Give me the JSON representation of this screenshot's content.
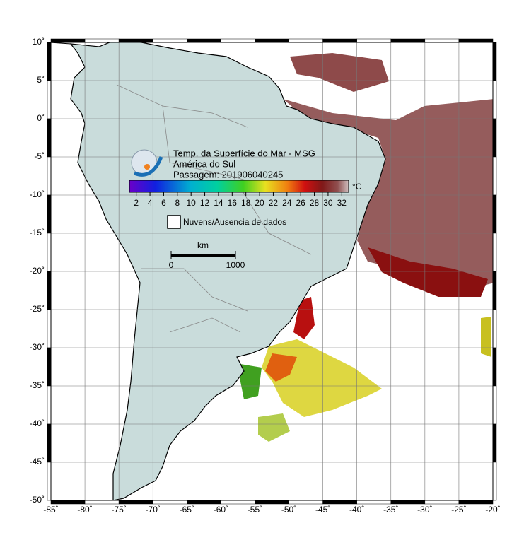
{
  "map": {
    "xlim": [
      -85,
      -20
    ],
    "ylim": [
      -50,
      10
    ],
    "xticks": [
      {
        "value": -85,
        "label": "-85˚"
      },
      {
        "value": -80,
        "label": "-80˚"
      },
      {
        "value": -75,
        "label": "-75˚"
      },
      {
        "value": -70,
        "label": "-70˚"
      },
      {
        "value": -65,
        "label": "-65˚"
      },
      {
        "value": -60,
        "label": "-60˚"
      },
      {
        "value": -55,
        "label": "-55˚"
      },
      {
        "value": -50,
        "label": "-50˚"
      },
      {
        "value": -45,
        "label": "-45˚"
      },
      {
        "value": -40,
        "label": "-40˚"
      },
      {
        "value": -35,
        "label": "-35˚"
      },
      {
        "value": -30,
        "label": "-30˚"
      },
      {
        "value": -25,
        "label": "-25˚"
      },
      {
        "value": -20,
        "label": "-20˚"
      }
    ],
    "yticks": [
      {
        "value": 10,
        "label": "10˚"
      },
      {
        "value": 5,
        "label": "5˚"
      },
      {
        "value": 0,
        "label": "0˚"
      },
      {
        "value": -5,
        "label": "-5˚"
      },
      {
        "value": -10,
        "label": "-10˚"
      },
      {
        "value": -15,
        "label": "-15˚"
      },
      {
        "value": -20,
        "label": "-20˚"
      },
      {
        "value": -25,
        "label": "-25˚"
      },
      {
        "value": -30,
        "label": "-30˚"
      },
      {
        "value": -35,
        "label": "-35˚"
      },
      {
        "value": -40,
        "label": "-40˚"
      },
      {
        "value": -45,
        "label": "-45˚"
      },
      {
        "value": -50,
        "label": "-50˚"
      }
    ],
    "grid": true
  },
  "legend": {
    "title": [
      "Temp. da Superfície do Mar - MSG",
      "América do Sul",
      "Passagem: 201906040245"
    ],
    "unit": "°C",
    "clim": [
      1,
      33
    ],
    "ticks": [
      2,
      4,
      6,
      8,
      10,
      12,
      14,
      16,
      18,
      20,
      22,
      24,
      26,
      28,
      30,
      32
    ],
    "cloud_label": "Nuvens/Ausencia de dados"
  },
  "scale_bar": {
    "unit": "km",
    "ticks": [
      0,
      1000
    ]
  }
}
